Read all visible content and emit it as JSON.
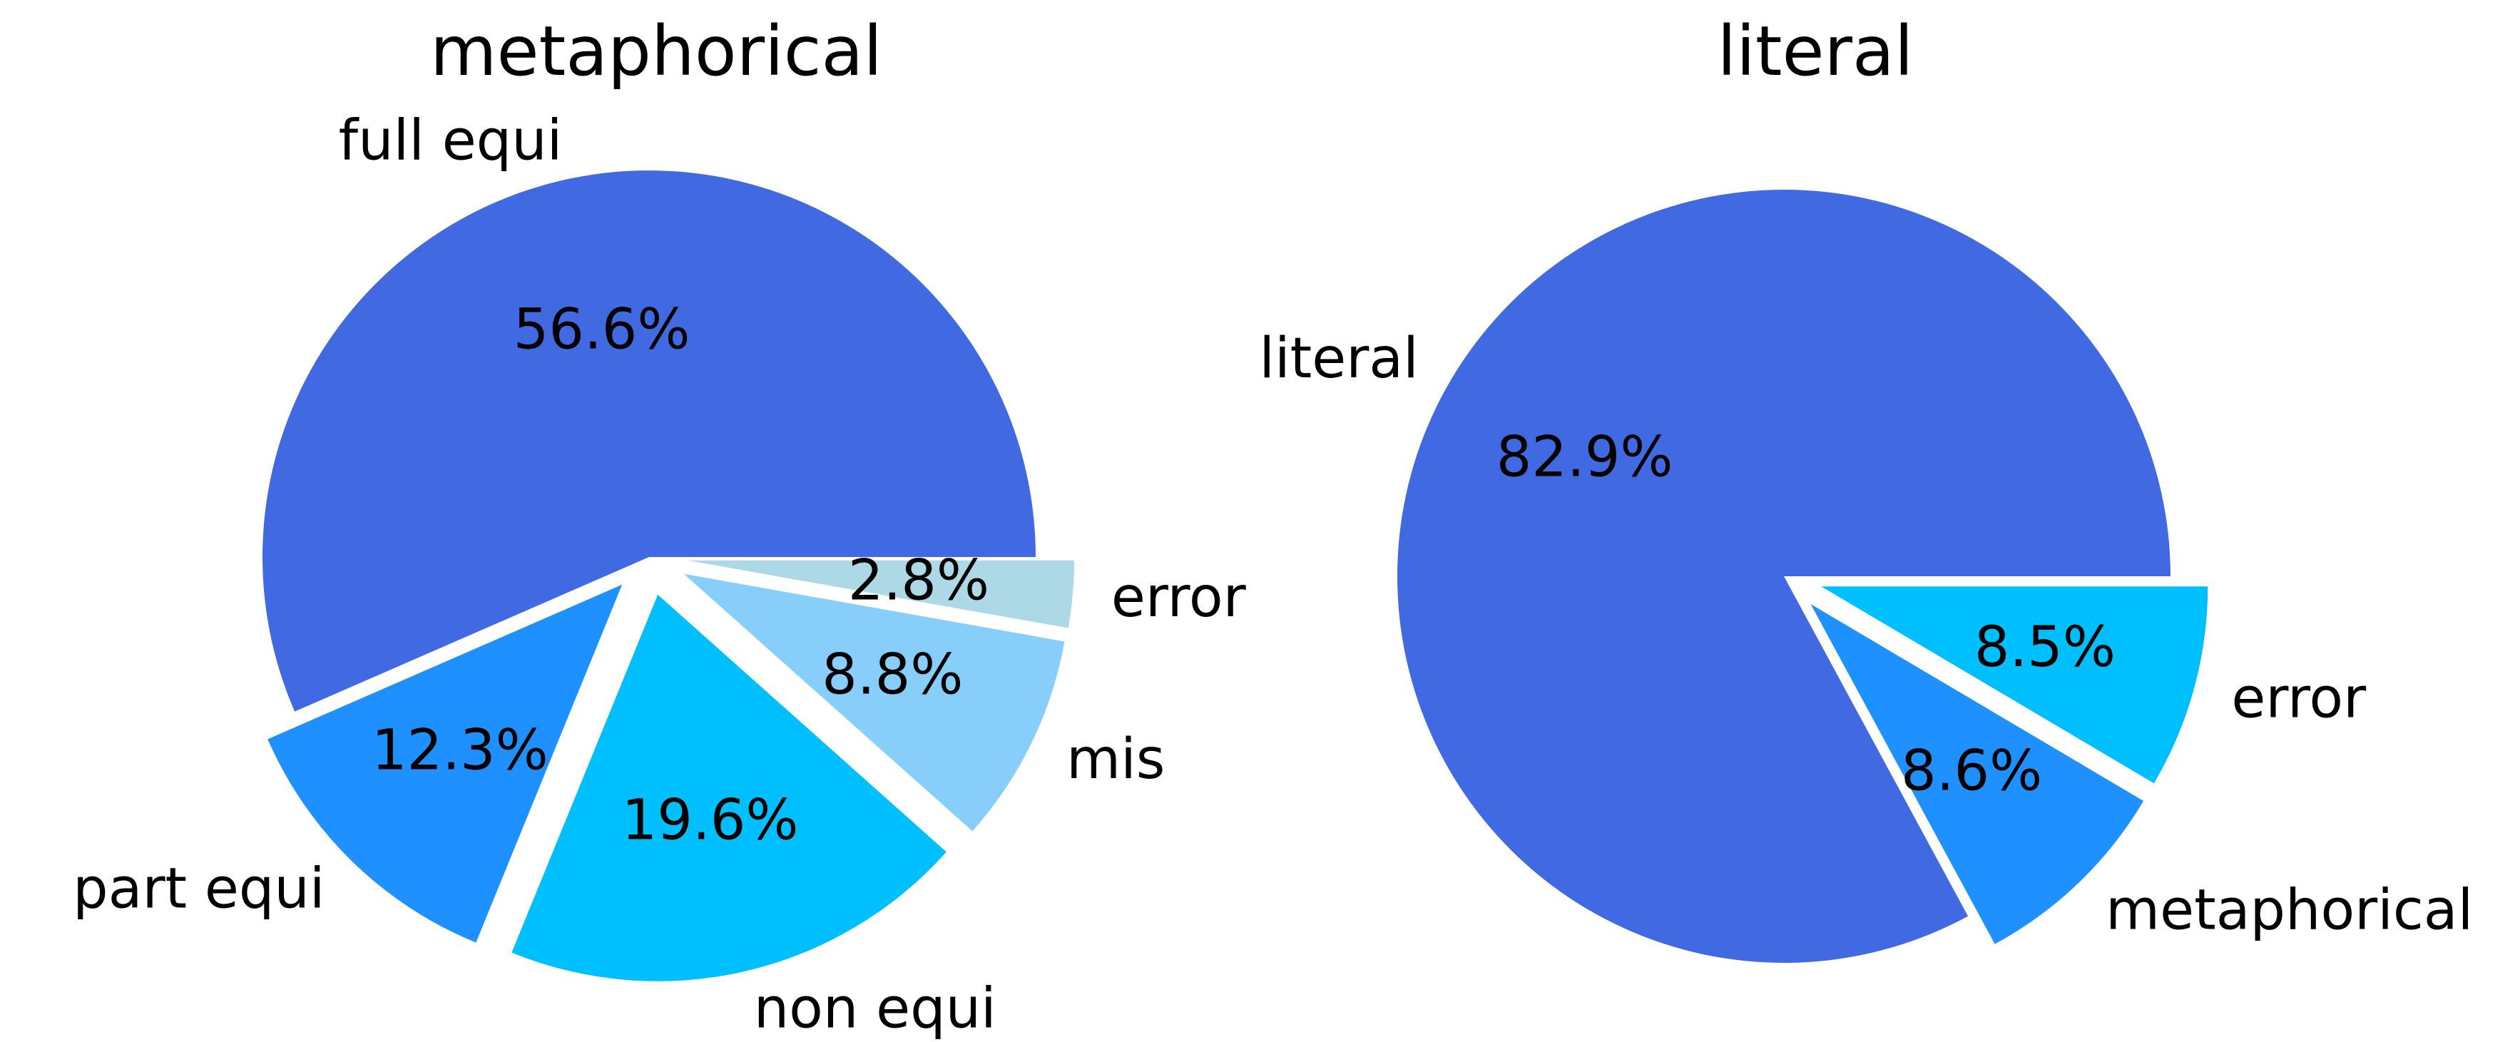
{
  "chart_data": [
    {
      "type": "pie",
      "title": "metaphorical",
      "slices": [
        {
          "label": "full equi",
          "value": 56.6,
          "pct_label": "56.6%",
          "color": "#4169E1",
          "exploded": false
        },
        {
          "label": "part equi",
          "value": 12.3,
          "pct_label": "12.3%",
          "color": "#1E90FF",
          "exploded": true
        },
        {
          "label": "non equi",
          "value": 19.6,
          "pct_label": "19.6%",
          "color": "#00BFFF",
          "exploded": true
        },
        {
          "label": "mis",
          "value": 8.8,
          "pct_label": "8.8%",
          "color": "#87CEFA",
          "exploded": true
        },
        {
          "label": "error",
          "value": 2.8,
          "pct_label": "2.8%",
          "color": "#ADD8E6",
          "exploded": true
        }
      ]
    },
    {
      "type": "pie",
      "title": "literal",
      "slices": [
        {
          "label": "literal",
          "value": 82.9,
          "pct_label": "82.9%",
          "color": "#4169E1",
          "exploded": false
        },
        {
          "label": "metaphorical",
          "value": 8.6,
          "pct_label": "8.6%",
          "color": "#1E90FF",
          "exploded": true
        },
        {
          "label": "error",
          "value": 8.5,
          "pct_label": "8.5%",
          "color": "#00BFFF",
          "exploded": true
        }
      ]
    }
  ]
}
